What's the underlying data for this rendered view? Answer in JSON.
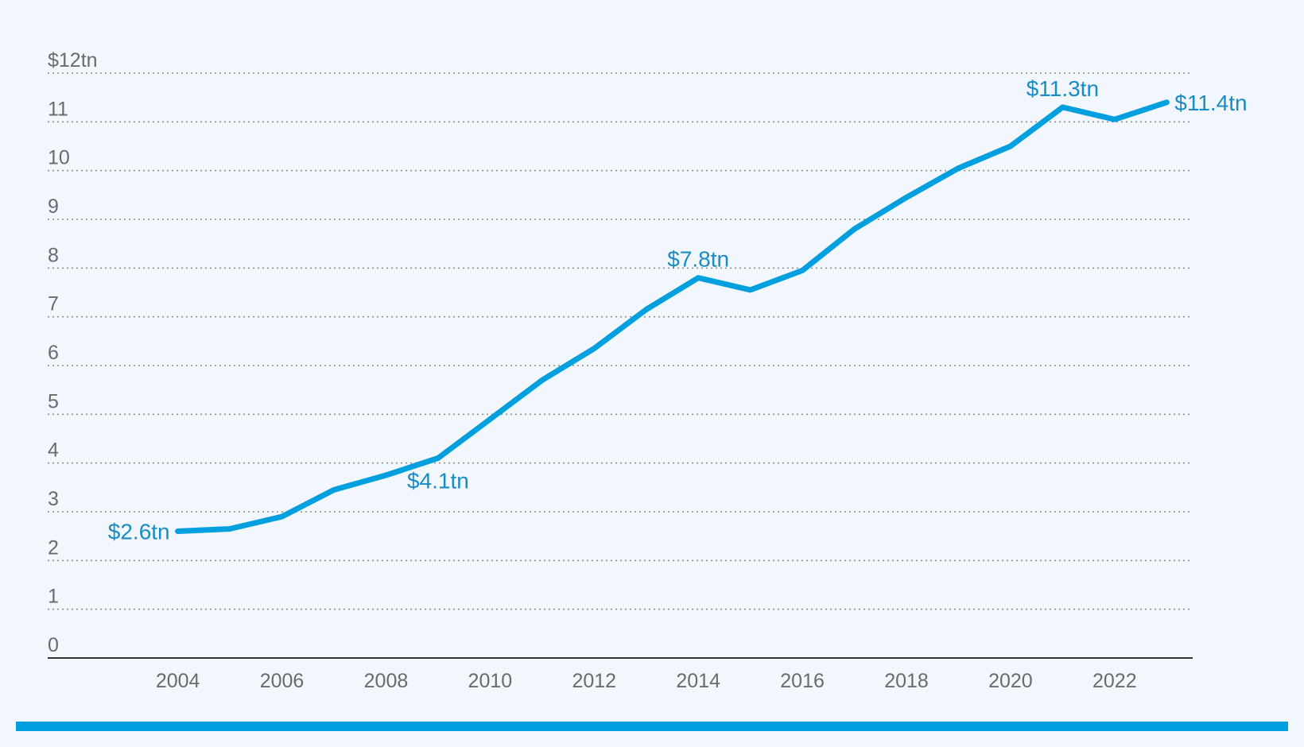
{
  "colors": {
    "background": "#f1f7fc",
    "series": "#009fdf",
    "annotation": "#1a8cc4",
    "axis_text": "#6b6b6b",
    "grid": "#8a8a8a",
    "footer_bar": "#009fdf"
  },
  "chart_data": {
    "type": "line",
    "title": "",
    "xlabel": "",
    "ylabel": "",
    "ylim": [
      0,
      12
    ],
    "xlim": [
      2001.5,
      2023.5
    ],
    "grid": true,
    "legend": "none",
    "y_ticks": [
      {
        "value": 0,
        "label": "0"
      },
      {
        "value": 1,
        "label": "1"
      },
      {
        "value": 2,
        "label": "2"
      },
      {
        "value": 3,
        "label": "3"
      },
      {
        "value": 4,
        "label": "4"
      },
      {
        "value": 5,
        "label": "5"
      },
      {
        "value": 6,
        "label": "6"
      },
      {
        "value": 7,
        "label": "7"
      },
      {
        "value": 8,
        "label": "8"
      },
      {
        "value": 9,
        "label": "9"
      },
      {
        "value": 10,
        "label": "10"
      },
      {
        "value": 11,
        "label": "11"
      },
      {
        "value": 12,
        "label": "$12tn"
      }
    ],
    "x_ticks": [
      {
        "value": 2004,
        "label": "2004"
      },
      {
        "value": 2006,
        "label": "2006"
      },
      {
        "value": 2008,
        "label": "2008"
      },
      {
        "value": 2010,
        "label": "2010"
      },
      {
        "value": 2012,
        "label": "2012"
      },
      {
        "value": 2014,
        "label": "2014"
      },
      {
        "value": 2016,
        "label": "2016"
      },
      {
        "value": 2018,
        "label": "2018"
      },
      {
        "value": 2020,
        "label": "2020"
      },
      {
        "value": 2022,
        "label": "2022"
      }
    ],
    "series": [
      {
        "x": [
          2004,
          2005,
          2006,
          2007,
          2008,
          2009,
          2010,
          2011,
          2012,
          2013,
          2014,
          2015,
          2016,
          2017,
          2018,
          2019,
          2020,
          2021,
          2022,
          2023
        ],
        "values": [
          2.6,
          2.65,
          2.9,
          3.45,
          3.75,
          4.1,
          4.9,
          5.7,
          6.35,
          7.15,
          7.8,
          7.55,
          7.95,
          8.8,
          9.45,
          10.05,
          10.5,
          11.3,
          11.05,
          11.4
        ]
      }
    ],
    "annotations": [
      {
        "text": "$2.6tn",
        "x": 2004,
        "y": 2.6,
        "anchor": "left"
      },
      {
        "text": "$4.1tn",
        "x": 2009,
        "y": 4.1,
        "anchor": "below"
      },
      {
        "text": "$7.8tn",
        "x": 2014,
        "y": 7.8,
        "anchor": "above"
      },
      {
        "text": "$11.3tn",
        "x": 2021,
        "y": 11.3,
        "anchor": "above"
      },
      {
        "text": "$11.4tn",
        "x": 2023,
        "y": 11.4,
        "anchor": "right"
      }
    ]
  }
}
